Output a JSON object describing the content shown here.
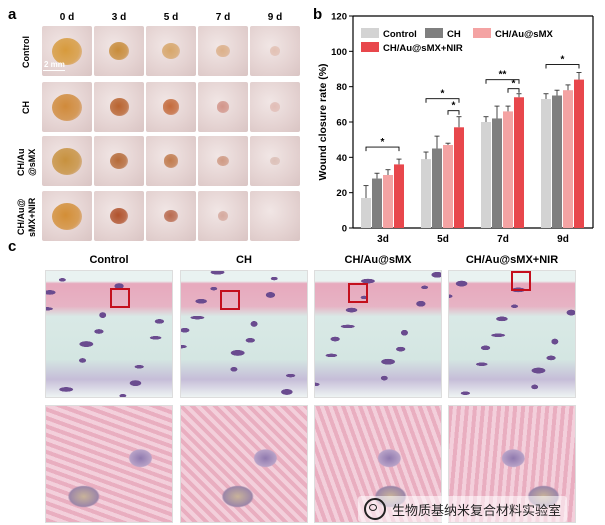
{
  "panel_letters": {
    "a": "a",
    "b": "b",
    "c": "c"
  },
  "panel_a": {
    "days": [
      "0 d",
      "3 d",
      "5 d",
      "7 d",
      "9 d"
    ],
    "groups": [
      "Control",
      "CH",
      "CH/Au\n@sMX",
      "CH/Au@\nsMX+NIR"
    ],
    "scale_bar": "2 mm",
    "wound_fraction": [
      [
        1.0,
        0.55,
        0.45,
        0.25,
        0.12
      ],
      [
        1.0,
        0.5,
        0.4,
        0.22,
        0.1
      ],
      [
        1.0,
        0.45,
        0.3,
        0.18,
        0.08
      ],
      [
        1.0,
        0.45,
        0.28,
        0.12,
        0.0
      ]
    ]
  },
  "chart_data": {
    "type": "bar",
    "ylabel": "Wound closure rate (%)",
    "xlabel": "",
    "ylim": [
      0,
      120
    ],
    "yticks": [
      0,
      20,
      40,
      60,
      80,
      100,
      120
    ],
    "grid": false,
    "legend_placement": "top-left",
    "categories": [
      "3d",
      "5d",
      "7d",
      "9d"
    ],
    "series": [
      {
        "name": "Control",
        "color": "#d3d3d3",
        "values": [
          17,
          39,
          60,
          73
        ],
        "errors": [
          7,
          4,
          3,
          3
        ]
      },
      {
        "name": "CH",
        "color": "#7f7f7f",
        "values": [
          28,
          45,
          62,
          75
        ],
        "errors": [
          3,
          7,
          7,
          3
        ]
      },
      {
        "name": "CH/Au@sMX",
        "color": "#f4a3a3",
        "values": [
          30,
          47,
          66,
          78
        ],
        "errors": [
          3,
          1,
          3,
          3
        ]
      },
      {
        "name": "CH/Au@sMX+NIR",
        "color": "#e8474c",
        "values": [
          36,
          57,
          74,
          84
        ],
        "errors": [
          3,
          6,
          2,
          4
        ]
      }
    ],
    "annotations": [
      {
        "category": "3d",
        "text": "*"
      },
      {
        "category": "5d",
        "text": "*"
      },
      {
        "category": "5d",
        "text": "*"
      },
      {
        "category": "7d",
        "text": "**"
      },
      {
        "category": "7d",
        "text": "*"
      },
      {
        "category": "9d",
        "text": "*"
      }
    ]
  },
  "panel_c": {
    "titles": [
      "Control",
      "CH",
      "CH/Au@sMX",
      "CH/Au@sMX+NIR"
    ]
  },
  "watermark": {
    "text": "生物质基纳米复合材料实验室"
  },
  "colors": {
    "accent_red": "#c40f1d",
    "skin": "#e6d7d6",
    "tissue_pink": "#e7b3c4",
    "nuclei_purple": "#6a4b8f"
  }
}
